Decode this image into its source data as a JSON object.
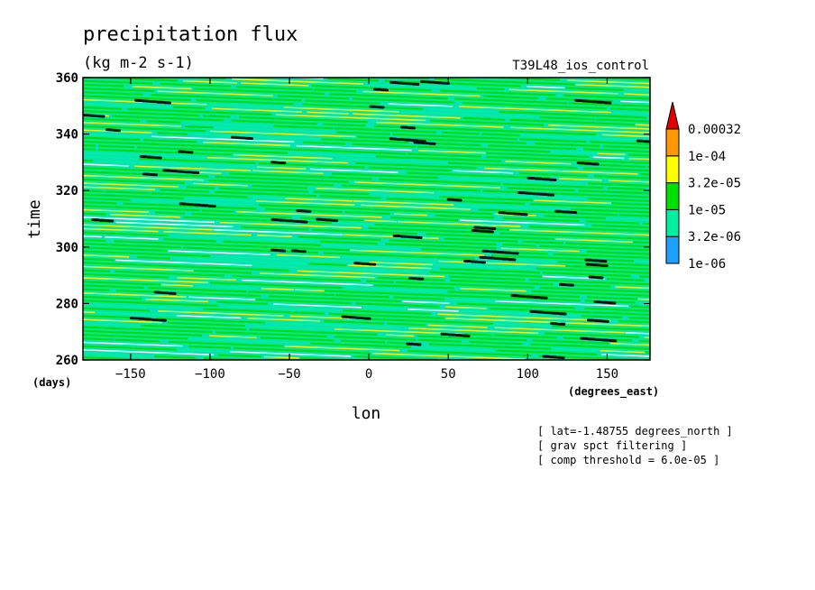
{
  "chart_data": {
    "type": "heatmap",
    "title": "precipitation flux",
    "subtitle": "(kg m-2 s-1)",
    "run_label": "T39L48_ios_control",
    "xlabel": "lon",
    "ylabel": "time",
    "x_units": "(degrees_east)",
    "y_units": "(days)",
    "xlim": [
      -180,
      177
    ],
    "ylim": [
      260,
      360
    ],
    "x_ticks": [
      -150,
      -100,
      -50,
      0,
      50,
      100,
      150
    ],
    "y_ticks": [
      260,
      280,
      300,
      320,
      340,
      360
    ],
    "grid": false,
    "legend_position": "right",
    "color_levels": [
      {
        "label": "1e-06",
        "value": 1e-06,
        "color": "#1ea0ff"
      },
      {
        "label": "3.2e-06",
        "value": 3.2e-06,
        "color": "#00f0a0"
      },
      {
        "label": "1e-05",
        "value": 1e-05,
        "color": "#00e000"
      },
      {
        "label": "3.2e-05",
        "value": 3.2e-05,
        "color": "#ffff00"
      },
      {
        "label": "1e-04",
        "value": 0.0001,
        "color": "#ff9800"
      },
      {
        "label": "0.00032",
        "value": 0.00032,
        "color": "#e00000"
      }
    ],
    "annotations": [
      "[ lat=-1.48755 degrees_north ]",
      "[ grav spct filtering ]",
      "[ comp threshold = 6.0e-05 ]"
    ]
  }
}
